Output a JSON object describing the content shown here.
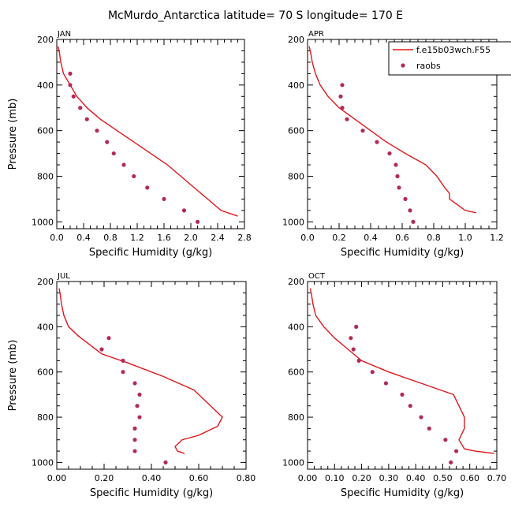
{
  "figure": {
    "title": "McMurdo_Antarctica  latitude= 70 S longitude= 170 E"
  },
  "colors": {
    "model": "#e0161b",
    "obs": "#b22a5a",
    "axis": "#000000"
  },
  "legend": {
    "placement": "top-right of APR panel, clipped at figure edge",
    "entries": [
      {
        "label": "f.e15b03wch.F55",
        "kind": "line"
      },
      {
        "label": "raobs",
        "kind": "marker"
      }
    ]
  },
  "chart_data": [
    {
      "type": "line",
      "panel": "JAN",
      "xlabel": "Specific Humidity (g/kg)",
      "ylabel": "Pressure (mb)",
      "xlim": [
        0,
        2.8
      ],
      "ylim": [
        1030,
        200
      ],
      "xticks": [
        "0.0",
        "0.4",
        "0.8",
        "1.2",
        "1.6",
        "2.0",
        "2.4",
        "2.8"
      ],
      "yticks": [
        "200",
        "400",
        "600",
        "800",
        "1000"
      ],
      "xtick_values": [
        0,
        0.4,
        0.8,
        1.2,
        1.6,
        2.0,
        2.4,
        2.8
      ],
      "ytick_values": [
        200,
        400,
        600,
        800,
        1000
      ],
      "series": [
        {
          "kind": "line",
          "points": [
            [
              0.02,
              230
            ],
            [
              0.04,
              260
            ],
            [
              0.06,
              300
            ],
            [
              0.1,
              350
            ],
            [
              0.2,
              400
            ],
            [
              0.3,
              450
            ],
            [
              0.45,
              500
            ],
            [
              0.65,
              550
            ],
            [
              0.9,
              600
            ],
            [
              1.15,
              650
            ],
            [
              1.4,
              700
            ],
            [
              1.65,
              750
            ],
            [
              1.85,
              800
            ],
            [
              2.05,
              850
            ],
            [
              2.25,
              900
            ],
            [
              2.45,
              950
            ],
            [
              2.7,
              975
            ]
          ]
        },
        {
          "kind": "scatter",
          "points": [
            [
              0.2,
              350
            ],
            [
              0.2,
              400
            ],
            [
              0.25,
              450
            ],
            [
              0.35,
              500
            ],
            [
              0.45,
              550
            ],
            [
              0.6,
              600
            ],
            [
              0.75,
              650
            ],
            [
              0.85,
              700
            ],
            [
              1.0,
              750
            ],
            [
              1.15,
              800
            ],
            [
              1.35,
              850
            ],
            [
              1.6,
              900
            ],
            [
              1.9,
              950
            ],
            [
              2.1,
              1000
            ]
          ]
        }
      ]
    },
    {
      "type": "line",
      "panel": "APR",
      "xlabel": "Specific Humidity (g/kg)",
      "ylabel": "",
      "xlim": [
        0,
        1.2
      ],
      "ylim": [
        1030,
        200
      ],
      "xticks": [
        "0.0",
        "0.2",
        "0.4",
        "0.6",
        "0.8",
        "1.0",
        "1.2"
      ],
      "yticks": [
        "200",
        "400",
        "600",
        "800",
        "1000"
      ],
      "xtick_values": [
        0,
        0.2,
        0.4,
        0.6,
        0.8,
        1.0,
        1.2
      ],
      "ytick_values": [
        200,
        400,
        600,
        800,
        1000
      ],
      "series": [
        {
          "kind": "line",
          "points": [
            [
              0.01,
              230
            ],
            [
              0.02,
              260
            ],
            [
              0.03,
              300
            ],
            [
              0.05,
              350
            ],
            [
              0.08,
              400
            ],
            [
              0.13,
              450
            ],
            [
              0.2,
              500
            ],
            [
              0.3,
              550
            ],
            [
              0.4,
              600
            ],
            [
              0.5,
              650
            ],
            [
              0.62,
              700
            ],
            [
              0.75,
              750
            ],
            [
              0.82,
              800
            ],
            [
              0.87,
              850
            ],
            [
              0.9,
              875
            ],
            [
              0.9,
              900
            ],
            [
              0.95,
              925
            ],
            [
              1.0,
              950
            ],
            [
              1.07,
              960
            ]
          ]
        },
        {
          "kind": "scatter",
          "points": [
            [
              0.22,
              400
            ],
            [
              0.21,
              450
            ],
            [
              0.22,
              500
            ],
            [
              0.25,
              550
            ],
            [
              0.35,
              600
            ],
            [
              0.44,
              650
            ],
            [
              0.52,
              700
            ],
            [
              0.56,
              750
            ],
            [
              0.57,
              800
            ],
            [
              0.58,
              850
            ],
            [
              0.62,
              900
            ],
            [
              0.65,
              950
            ],
            [
              0.67,
              1000
            ]
          ]
        }
      ]
    },
    {
      "type": "line",
      "panel": "JUL",
      "xlabel": "Specific Humidity (g/kg)",
      "ylabel": "Pressure (mb)",
      "xlim": [
        0,
        0.8
      ],
      "ylim": [
        1030,
        200
      ],
      "xticks": [
        "0.00",
        "0.20",
        "0.40",
        "0.60",
        "0.80"
      ],
      "yticks": [
        "200",
        "400",
        "600",
        "800",
        "1000"
      ],
      "xtick_values": [
        0,
        0.2,
        0.4,
        0.6,
        0.8
      ],
      "ytick_values": [
        200,
        400,
        600,
        800,
        1000
      ],
      "series": [
        {
          "kind": "line",
          "points": [
            [
              0.01,
              230
            ],
            [
              0.015,
              260
            ],
            [
              0.02,
              300
            ],
            [
              0.03,
              350
            ],
            [
              0.05,
              400
            ],
            [
              0.09,
              440
            ],
            [
              0.14,
              480
            ],
            [
              0.19,
              520
            ],
            [
              0.3,
              560
            ],
            [
              0.45,
              620
            ],
            [
              0.58,
              680
            ],
            [
              0.64,
              740
            ],
            [
              0.7,
              800
            ],
            [
              0.68,
              840
            ],
            [
              0.6,
              880
            ],
            [
              0.53,
              900
            ],
            [
              0.5,
              930
            ],
            [
              0.51,
              950
            ],
            [
              0.54,
              960
            ]
          ]
        },
        {
          "kind": "scatter",
          "points": [
            [
              0.22,
              450
            ],
            [
              0.19,
              500
            ],
            [
              0.28,
              550
            ],
            [
              0.28,
              600
            ],
            [
              0.33,
              650
            ],
            [
              0.35,
              700
            ],
            [
              0.34,
              750
            ],
            [
              0.35,
              800
            ],
            [
              0.33,
              850
            ],
            [
              0.33,
              900
            ],
            [
              0.33,
              950
            ],
            [
              0.46,
              1000
            ]
          ]
        }
      ]
    },
    {
      "type": "line",
      "panel": "OCT",
      "xlabel": "Specific Humidity (g/kg)",
      "ylabel": "",
      "xlim": [
        0,
        0.7
      ],
      "ylim": [
        1030,
        200
      ],
      "xticks": [
        "0.00",
        "0.10",
        "0.20",
        "0.30",
        "0.40",
        "0.50",
        "0.60",
        "0.70"
      ],
      "yticks": [
        "200",
        "400",
        "600",
        "800",
        "1000"
      ],
      "xtick_values": [
        0,
        0.1,
        0.2,
        0.3,
        0.4,
        0.5,
        0.6,
        0.7
      ],
      "ytick_values": [
        200,
        400,
        600,
        800,
        1000
      ],
      "series": [
        {
          "kind": "line",
          "points": [
            [
              0.01,
              230
            ],
            [
              0.015,
              260
            ],
            [
              0.02,
              300
            ],
            [
              0.03,
              350
            ],
            [
              0.06,
              400
            ],
            [
              0.1,
              450
            ],
            [
              0.15,
              500
            ],
            [
              0.2,
              550
            ],
            [
              0.3,
              600
            ],
            [
              0.42,
              650
            ],
            [
              0.54,
              700
            ],
            [
              0.56,
              750
            ],
            [
              0.58,
              800
            ],
            [
              0.58,
              850
            ],
            [
              0.56,
              900
            ],
            [
              0.58,
              940
            ],
            [
              0.62,
              950
            ],
            [
              0.69,
              960
            ]
          ]
        },
        {
          "kind": "scatter",
          "points": [
            [
              0.18,
              400
            ],
            [
              0.16,
              450
            ],
            [
              0.17,
              500
            ],
            [
              0.19,
              550
            ],
            [
              0.24,
              600
            ],
            [
              0.29,
              650
            ],
            [
              0.35,
              700
            ],
            [
              0.38,
              750
            ],
            [
              0.42,
              800
            ],
            [
              0.45,
              850
            ],
            [
              0.51,
              900
            ],
            [
              0.55,
              950
            ],
            [
              0.53,
              1000
            ]
          ]
        }
      ]
    }
  ]
}
